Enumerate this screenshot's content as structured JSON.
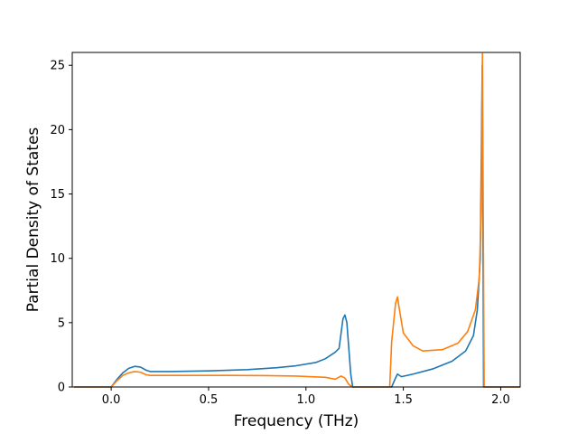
{
  "chart_data": {
    "type": "line",
    "title": "",
    "xlabel": "Frequency (THz)",
    "ylabel": "Partial Density of States",
    "xlim": [
      -0.2,
      2.1
    ],
    "ylim": [
      0,
      26
    ],
    "xticks": [
      0.0,
      0.5,
      1.0,
      1.5,
      2.0
    ],
    "xtick_labels": [
      "0.0",
      "0.5",
      "1.0",
      "1.5",
      "2.0"
    ],
    "yticks": [
      0,
      5,
      10,
      15,
      20,
      25
    ],
    "ytick_labels": [
      "0",
      "5",
      "10",
      "15",
      "20",
      "25"
    ],
    "grid": false,
    "legend": "none",
    "series": [
      {
        "color": "#1f77b4",
        "points": [
          [
            -0.19,
            0
          ],
          [
            0.0,
            0
          ],
          [
            0.03,
            0.6
          ],
          [
            0.06,
            1.1
          ],
          [
            0.09,
            1.45
          ],
          [
            0.12,
            1.6
          ],
          [
            0.15,
            1.55
          ],
          [
            0.18,
            1.3
          ],
          [
            0.2,
            1.2
          ],
          [
            0.3,
            1.2
          ],
          [
            0.5,
            1.25
          ],
          [
            0.7,
            1.35
          ],
          [
            0.85,
            1.5
          ],
          [
            0.95,
            1.65
          ],
          [
            1.05,
            1.9
          ],
          [
            1.1,
            2.2
          ],
          [
            1.15,
            2.7
          ],
          [
            1.17,
            3.0
          ],
          [
            1.19,
            5.3
          ],
          [
            1.2,
            5.6
          ],
          [
            1.21,
            5.0
          ],
          [
            1.22,
            3.0
          ],
          [
            1.23,
            1.0
          ],
          [
            1.24,
            0
          ],
          [
            1.44,
            0
          ],
          [
            1.46,
            0.7
          ],
          [
            1.47,
            1.0
          ],
          [
            1.49,
            0.8
          ],
          [
            1.55,
            1.0
          ],
          [
            1.65,
            1.4
          ],
          [
            1.75,
            2.0
          ],
          [
            1.82,
            2.8
          ],
          [
            1.86,
            4.0
          ],
          [
            1.88,
            6.0
          ],
          [
            1.895,
            10.0
          ],
          [
            1.905,
            25.0
          ],
          [
            1.912,
            0
          ],
          [
            2.1,
            0
          ]
        ]
      },
      {
        "color": "#ff7f0e",
        "points": [
          [
            -0.19,
            0
          ],
          [
            0.0,
            0
          ],
          [
            0.03,
            0.5
          ],
          [
            0.06,
            0.9
          ],
          [
            0.09,
            1.1
          ],
          [
            0.12,
            1.2
          ],
          [
            0.15,
            1.15
          ],
          [
            0.18,
            0.95
          ],
          [
            0.2,
            0.9
          ],
          [
            0.4,
            0.9
          ],
          [
            0.6,
            0.9
          ],
          [
            0.8,
            0.88
          ],
          [
            0.95,
            0.85
          ],
          [
            1.1,
            0.75
          ],
          [
            1.15,
            0.6
          ],
          [
            1.18,
            0.85
          ],
          [
            1.2,
            0.7
          ],
          [
            1.22,
            0.2
          ],
          [
            1.24,
            0
          ],
          [
            1.43,
            0
          ],
          [
            1.44,
            3.5
          ],
          [
            1.46,
            6.5
          ],
          [
            1.47,
            7.0
          ],
          [
            1.48,
            6.0
          ],
          [
            1.5,
            4.2
          ],
          [
            1.55,
            3.2
          ],
          [
            1.6,
            2.8
          ],
          [
            1.7,
            2.9
          ],
          [
            1.78,
            3.4
          ],
          [
            1.83,
            4.3
          ],
          [
            1.87,
            6.0
          ],
          [
            1.89,
            8.5
          ],
          [
            1.9,
            14.0
          ],
          [
            1.906,
            25.9
          ],
          [
            1.915,
            0
          ],
          [
            2.1,
            0
          ]
        ]
      }
    ]
  }
}
